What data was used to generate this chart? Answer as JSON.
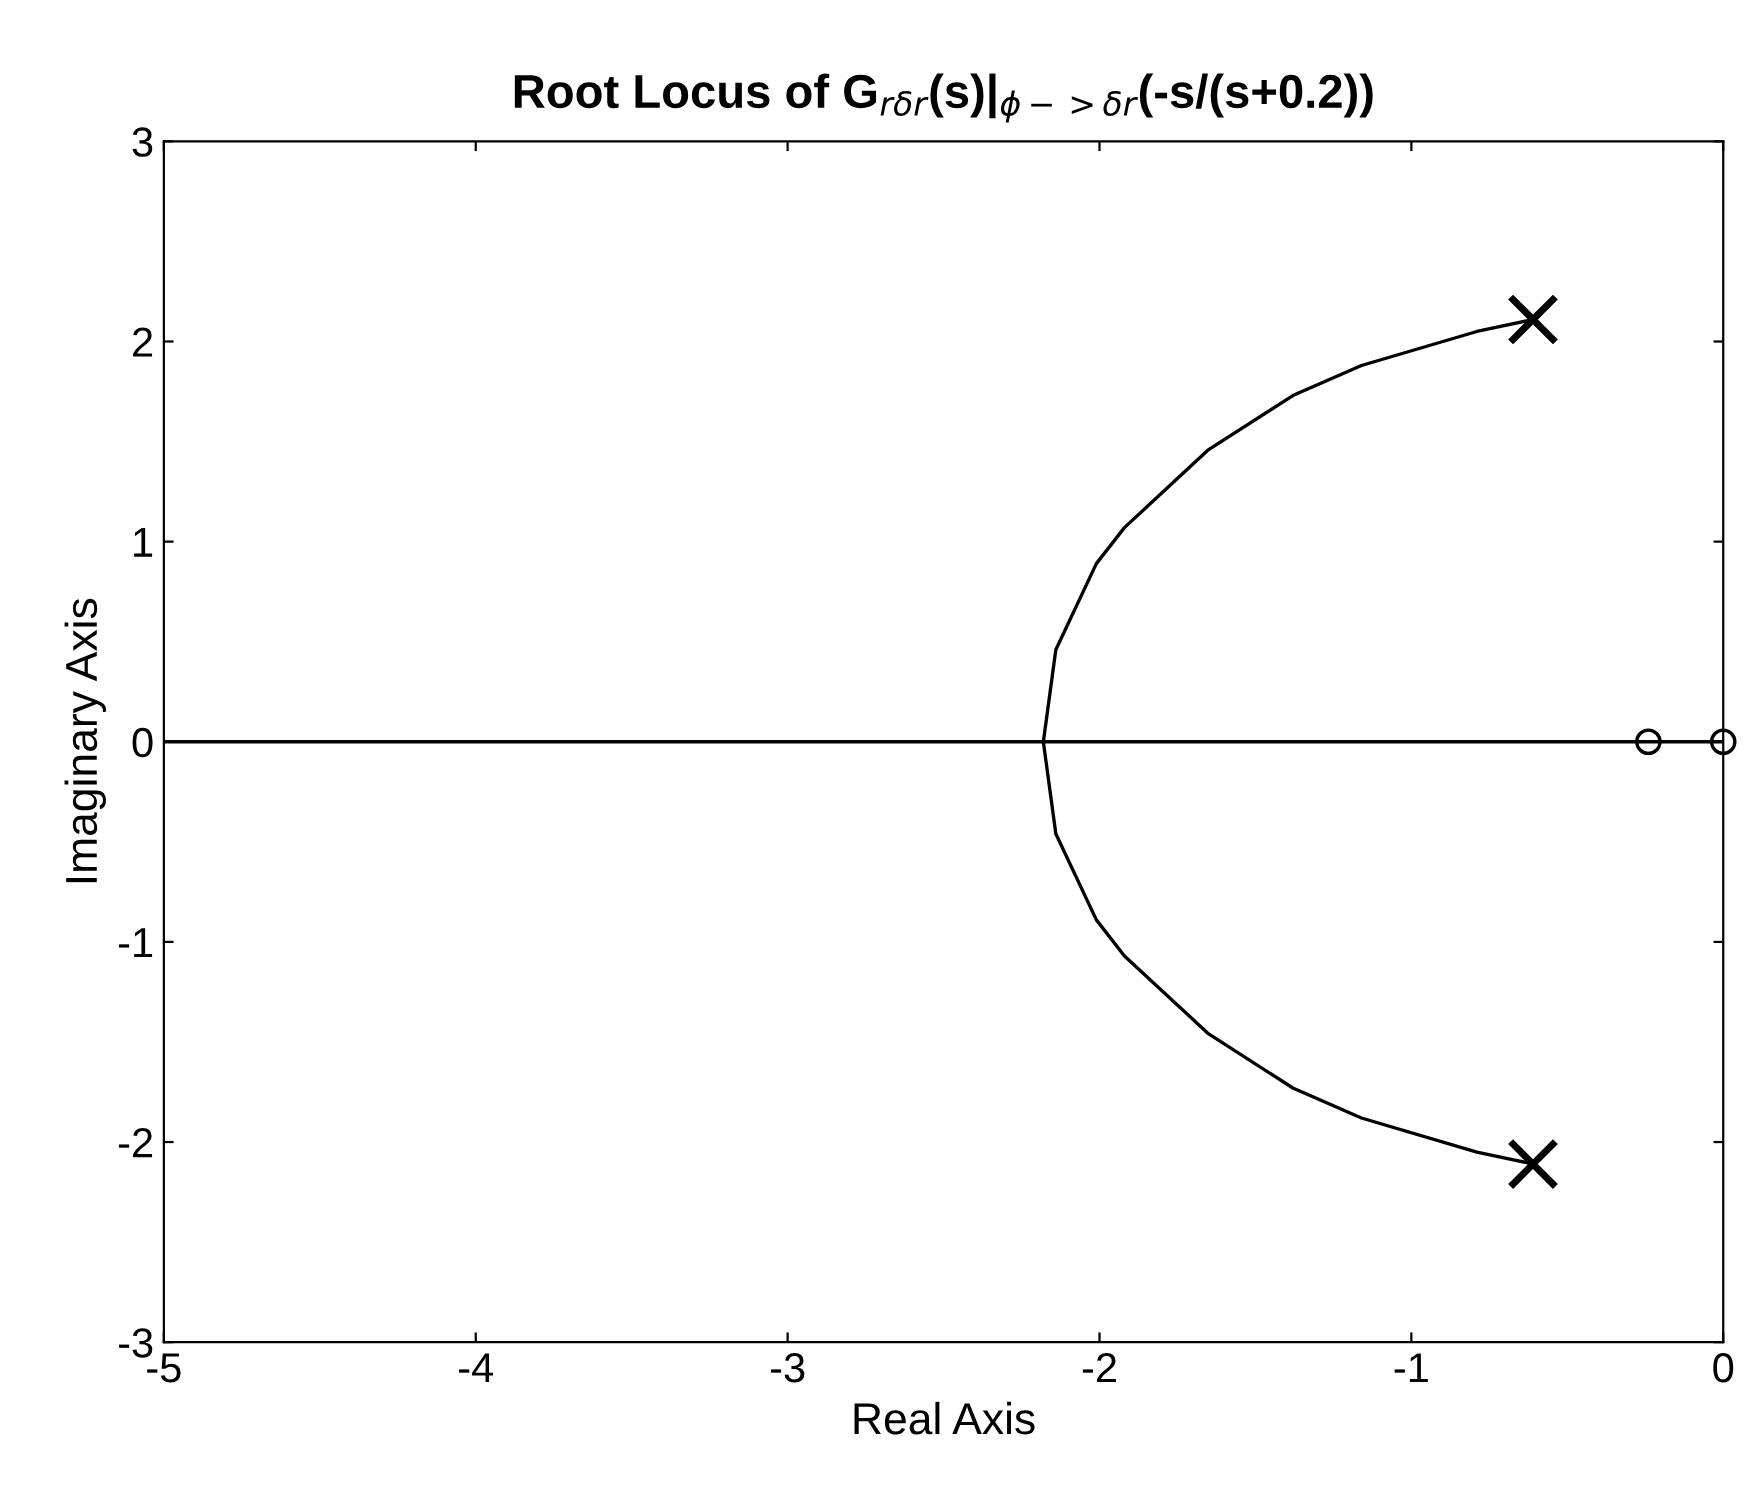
{
  "chart_data": {
    "type": "line",
    "title": "Root Locus of G$_{rδr}$(s)|$_{ϕ−>δr}$(-s/(s+0.2))",
    "xlabel": "Real Axis",
    "ylabel": "Imaginary Axis",
    "xlim": [
      -5,
      0
    ],
    "xticks": [
      -5,
      -4,
      -3,
      -2,
      -1,
      0
    ],
    "ylim": [
      -3,
      3
    ],
    "yticks": [
      -3,
      -2,
      -1,
      0,
      1,
      2,
      3
    ],
    "grid": false,
    "legend": false,
    "series": [
      {
        "color": "#000000",
        "marker": "none",
        "x": [
          -0.61,
          -0.79,
          -1.16,
          -1.38,
          -1.65,
          -1.92,
          -2.01,
          -2.14,
          -2.18
        ],
        "values": [
          2.11,
          2.05,
          1.88,
          1.73,
          1.46,
          1.07,
          0.89,
          0.46,
          0
        ]
      },
      {
        "color": "#000000",
        "marker": "none",
        "x": [
          -0.61,
          -0.79,
          -1.16,
          -1.38,
          -1.65,
          -1.92,
          -2.01,
          -2.14,
          -2.18
        ],
        "values": [
          -2.11,
          -2.05,
          -1.88,
          -1.73,
          -1.46,
          -1.07,
          -0.89,
          -0.46,
          0
        ]
      },
      {
        "color": "#000000",
        "marker": "none",
        "x": [
          -5,
          0
        ],
        "values": [
          0,
          0
        ]
      },
      {
        "type": "scatter",
        "color": "#000000",
        "marker": "cross",
        "x": [
          -0.61,
          -0.61
        ],
        "values": [
          2.11,
          -2.11
        ]
      },
      {
        "type": "scatter",
        "color": "#000000",
        "marker": "circle",
        "x": [
          -0.24,
          0
        ],
        "values": [
          0,
          0
        ]
      }
    ]
  }
}
